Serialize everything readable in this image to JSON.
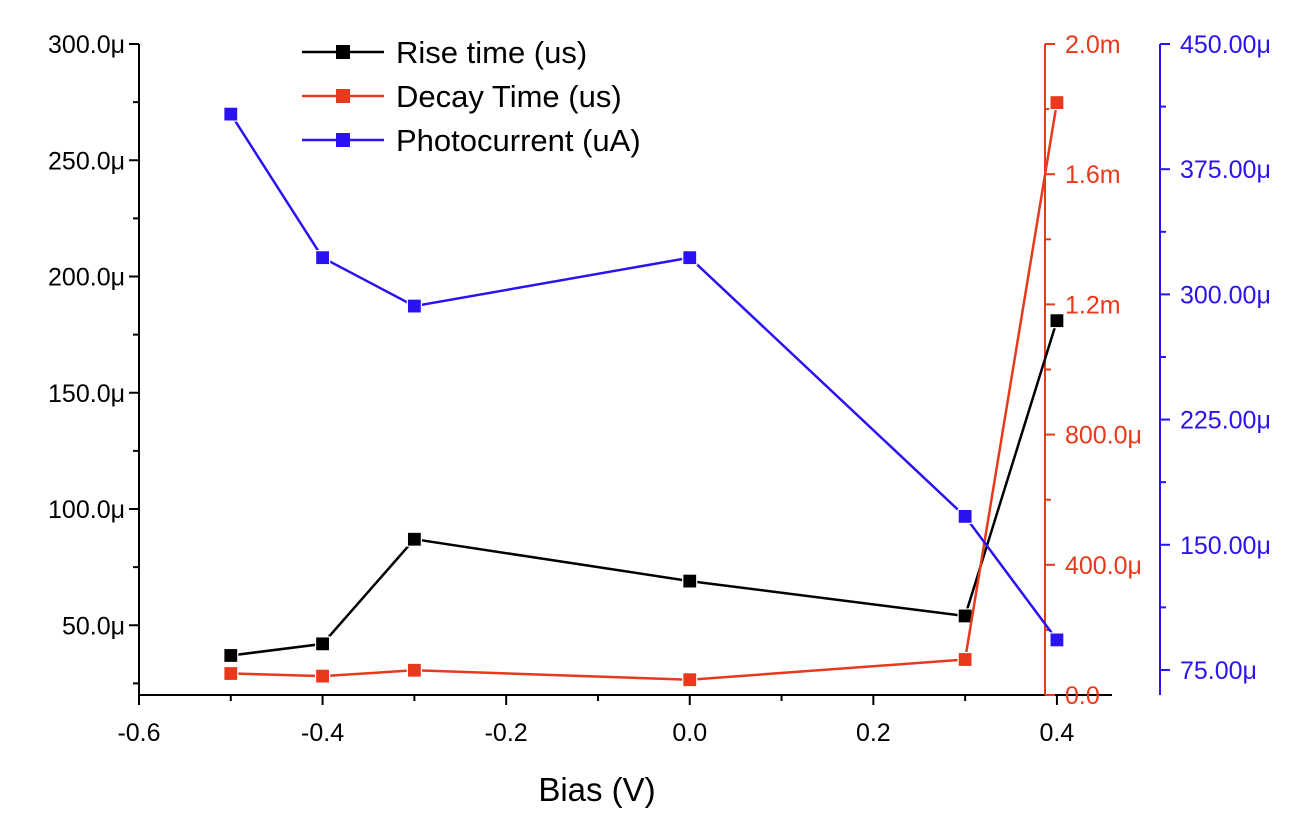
{
  "chart_data": {
    "type": "line",
    "xlabel": "Bias (V)",
    "xlim": [
      -0.6,
      0.46
    ],
    "x_ticks": [
      -0.6,
      -0.4,
      -0.2,
      0.0,
      0.2,
      0.4
    ],
    "x_tick_labels": [
      "-0.6",
      "-0.4",
      "-0.2",
      "0.0",
      "0.2",
      "0.4"
    ],
    "x": [
      -0.5,
      -0.4,
      -0.3,
      0.0,
      0.3,
      0.4
    ],
    "legend_position": "top-left",
    "series": [
      {
        "name": "Rise time (us)",
        "color": "#000000",
        "marker": "square",
        "axis": "left",
        "values": [
          3.7e-05,
          4.2e-05,
          8.7e-05,
          6.9e-05,
          5.4e-05,
          0.000181
        ]
      },
      {
        "name": "Decay Time (us)",
        "color": "#e8391c",
        "marker": "square",
        "axis": "right1",
        "values": [
          6.6e-05,
          5.8e-05,
          7.6e-05,
          4.7e-05,
          0.000109,
          0.00182
        ]
      },
      {
        "name": "Photocurrent (uA)",
        "color": "#2b12f2",
        "marker": "square",
        "axis": "right2",
        "values": [
          0.000408,
          0.000322,
          0.000293,
          0.000322,
          0.000167,
          9.3e-05
        ]
      }
    ],
    "axes": {
      "left": {
        "color": "#000000",
        "ylim": [
          2e-05,
          0.0003
        ],
        "ticks": [
          5e-05,
          0.0001,
          0.00015,
          0.0002,
          0.00025,
          0.0003
        ],
        "tick_labels": [
          "50.0μ",
          "100.0μ",
          "150.0μ",
          "200.0μ",
          "250.0μ",
          "300.0μ"
        ]
      },
      "right1": {
        "color": "#e8391c",
        "ylim": [
          0.0,
          0.002
        ],
        "ticks": [
          0.0,
          0.0004,
          0.0008,
          0.0012,
          0.0016,
          0.002
        ],
        "tick_labels": [
          "0.0",
          "400.0μ",
          "800.0μ",
          "1.2m",
          "1.6m",
          "2.0m"
        ]
      },
      "right2": {
        "color": "#2b12f2",
        "ylim": [
          6e-05,
          0.00045
        ],
        "ticks": [
          7.5e-05,
          0.00015,
          0.000225,
          0.0003,
          0.000375,
          0.00045
        ],
        "tick_labels": [
          "75.00μ",
          "150.00μ",
          "225.00μ",
          "300.00μ",
          "375.00μ",
          "450.00μ"
        ]
      }
    }
  }
}
